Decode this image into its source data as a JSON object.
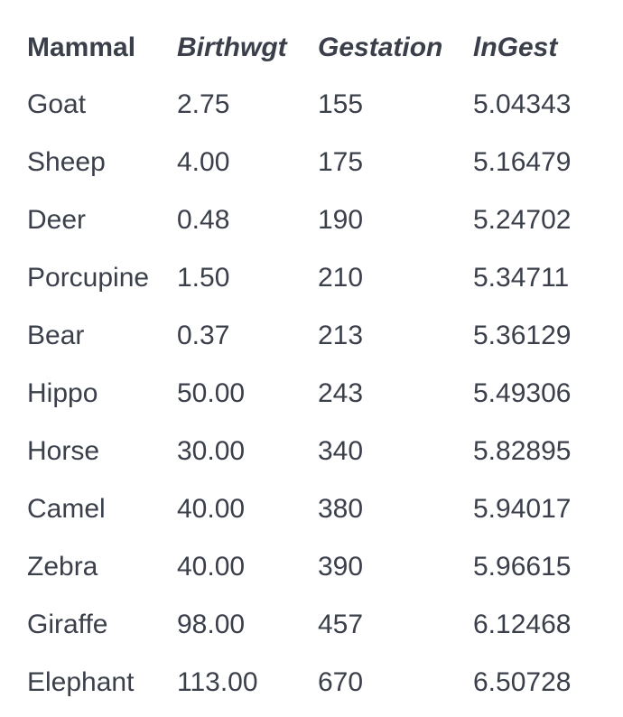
{
  "table": {
    "columns": [
      "Mammal",
      "Birthwgt",
      "Gestation",
      "lnGest"
    ],
    "rows": [
      [
        "Goat",
        "2.75",
        "155",
        "5.04343"
      ],
      [
        "Sheep",
        "4.00",
        "175",
        "5.16479"
      ],
      [
        "Deer",
        "0.48",
        "190",
        "5.24702"
      ],
      [
        "Porcupine",
        "1.50",
        "210",
        "5.34711"
      ],
      [
        "Bear",
        "0.37",
        "213",
        "5.36129"
      ],
      [
        "Hippo",
        "50.00",
        "243",
        "5.49306"
      ],
      [
        "Horse",
        "30.00",
        "340",
        "5.82895"
      ],
      [
        "Camel",
        "40.00",
        "380",
        "5.94017"
      ],
      [
        "Zebra",
        "40.00",
        "390",
        "5.96615"
      ],
      [
        "Giraffe",
        "98.00",
        "457",
        "6.12468"
      ],
      [
        "Elephant",
        "113.00",
        "670",
        "6.50728"
      ]
    ]
  }
}
